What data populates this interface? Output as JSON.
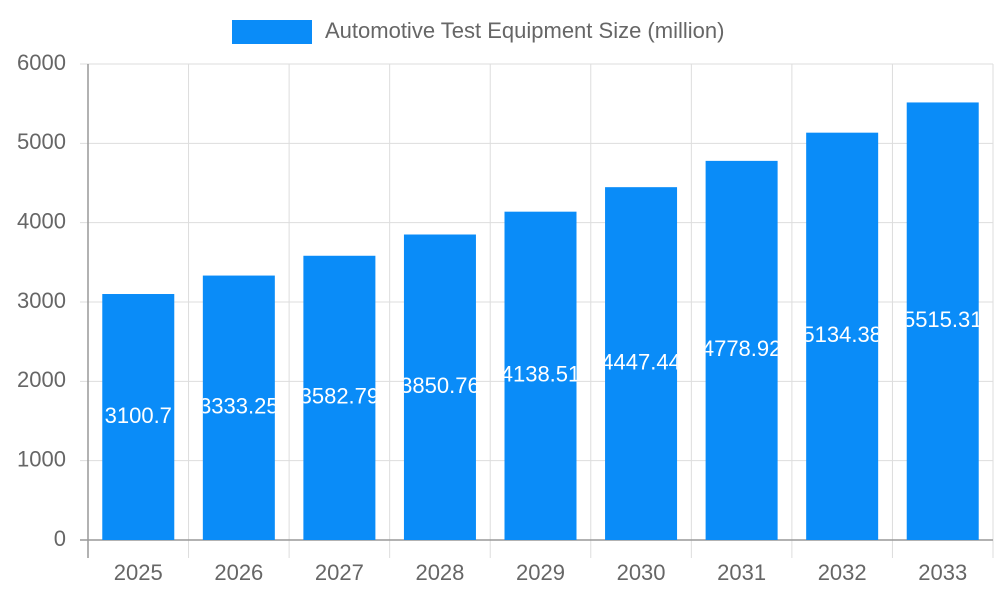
{
  "chart_data": {
    "type": "bar",
    "categories": [
      "2025",
      "2026",
      "2027",
      "2028",
      "2029",
      "2030",
      "2031",
      "2032",
      "2033"
    ],
    "series": [
      {
        "name": "Automotive Test Equipment Size (million)",
        "color": "#0a8cf8",
        "values": [
          3100.7,
          3333.25,
          3582.79,
          3850.76,
          4138.51,
          4447.44,
          4778.92,
          5134.38,
          5515.31
        ]
      }
    ],
    "ylim": [
      0,
      6000
    ],
    "yticks": [
      0,
      1000,
      2000,
      3000,
      4000,
      5000,
      6000
    ],
    "grid": true,
    "legend": "top"
  }
}
